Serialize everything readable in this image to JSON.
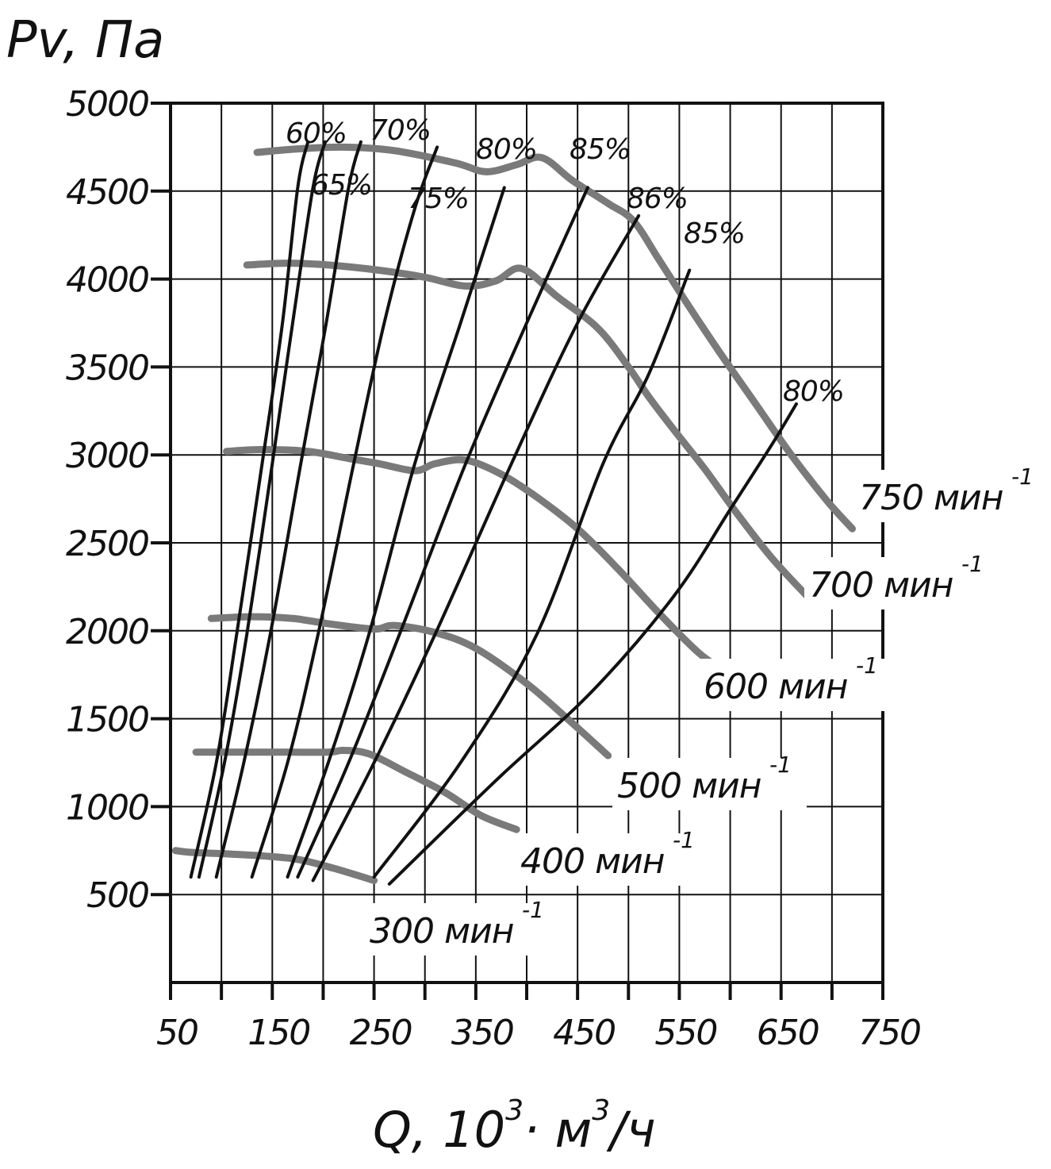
{
  "chart_data": {
    "type": "line",
    "title": "",
    "ylabel": "Pv, Па",
    "xlabel": {
      "prefix": "Q, 10",
      "sup1": "3",
      "dot": "·",
      "mid": " м",
      "sup2": "3",
      "suffix": "/ч"
    },
    "xlim": [
      50,
      750
    ],
    "ylim": [
      0,
      5000
    ],
    "x_ticks": [
      50,
      150,
      250,
      350,
      450,
      550,
      650,
      750
    ],
    "y_ticks": [
      500,
      1000,
      1500,
      2000,
      2500,
      3000,
      3500,
      4000,
      4500,
      5000
    ],
    "x_tick_labels": [
      "50",
      "150",
      "250",
      "350",
      "450",
      "550",
      "650",
      "750"
    ],
    "y_tick_labels": [
      "500",
      "1000",
      "1500",
      "2000",
      "2500",
      "3000",
      "3500",
      "4000",
      "4500",
      "5000"
    ],
    "grid": true,
    "speed_curves": [
      {
        "label": "300 мин",
        "exponent": "-1",
        "points": [
          [
            55,
            750
          ],
          [
            70,
            740
          ],
          [
            110,
            730
          ],
          [
            140,
            720
          ],
          [
            175,
            700
          ],
          [
            210,
            650
          ],
          [
            250,
            580
          ]
        ]
      },
      {
        "label": "400 мин",
        "exponent": "-1",
        "points": [
          [
            75,
            1310
          ],
          [
            110,
            1310
          ],
          [
            150,
            1310
          ],
          [
            205,
            1310
          ],
          [
            220,
            1320
          ],
          [
            245,
            1300
          ],
          [
            280,
            1200
          ],
          [
            320,
            1080
          ],
          [
            355,
            950
          ],
          [
            390,
            870
          ]
        ]
      },
      {
        "label": "500 мин",
        "exponent": "-1",
        "points": [
          [
            90,
            2070
          ],
          [
            130,
            2080
          ],
          [
            170,
            2070
          ],
          [
            205,
            2040
          ],
          [
            250,
            2010
          ],
          [
            270,
            2030
          ],
          [
            310,
            1990
          ],
          [
            350,
            1900
          ],
          [
            400,
            1700
          ],
          [
            440,
            1500
          ],
          [
            480,
            1290
          ]
        ]
      },
      {
        "label": "600 мин",
        "exponent": "-1",
        "points": [
          [
            105,
            3020
          ],
          [
            140,
            3030
          ],
          [
            185,
            3020
          ],
          [
            225,
            2980
          ],
          [
            255,
            2950
          ],
          [
            290,
            2910
          ],
          [
            310,
            2950
          ],
          [
            340,
            2970
          ],
          [
            375,
            2890
          ],
          [
            410,
            2760
          ],
          [
            450,
            2580
          ],
          [
            490,
            2350
          ],
          [
            530,
            2100
          ],
          [
            570,
            1870
          ],
          [
            600,
            1750
          ]
        ]
      },
      {
        "label": "700 мин",
        "exponent": "-1",
        "points": [
          [
            125,
            4080
          ],
          [
            165,
            4090
          ],
          [
            205,
            4080
          ],
          [
            255,
            4050
          ],
          [
            300,
            4010
          ],
          [
            340,
            3960
          ],
          [
            370,
            3990
          ],
          [
            395,
            4060
          ],
          [
            430,
            3900
          ],
          [
            470,
            3720
          ],
          [
            500,
            3500
          ],
          [
            520,
            3330
          ],
          [
            545,
            3140
          ],
          [
            575,
            2920
          ],
          [
            605,
            2680
          ],
          [
            640,
            2420
          ],
          [
            675,
            2200
          ]
        ]
      },
      {
        "label": "750 мин",
        "exponent": "-1",
        "points": [
          [
            135,
            4720
          ],
          [
            175,
            4740
          ],
          [
            220,
            4750
          ],
          [
            270,
            4730
          ],
          [
            330,
            4660
          ],
          [
            360,
            4610
          ],
          [
            390,
            4650
          ],
          [
            415,
            4690
          ],
          [
            445,
            4560
          ],
          [
            480,
            4430
          ],
          [
            505,
            4330
          ],
          [
            530,
            4110
          ],
          [
            560,
            3840
          ],
          [
            590,
            3580
          ],
          [
            625,
            3290
          ],
          [
            660,
            3000
          ],
          [
            695,
            2740
          ],
          [
            720,
            2580
          ]
        ]
      }
    ],
    "efficiency_curves": [
      {
        "label": "60%",
        "points": [
          [
            70,
            600
          ],
          [
            95,
            1250
          ],
          [
            115,
            1980
          ],
          [
            140,
            2950
          ],
          [
            160,
            3750
          ],
          [
            175,
            4520
          ],
          [
            185,
            4780
          ]
        ]
      },
      {
        "label": "65%",
        "points": [
          [
            78,
            600
          ],
          [
            103,
            1250
          ],
          [
            125,
            1980
          ],
          [
            150,
            2950
          ],
          [
            170,
            3750
          ],
          [
            190,
            4520
          ],
          [
            202,
            4780
          ]
        ]
      },
      {
        "label": "70%",
        "points": [
          [
            95,
            600
          ],
          [
            122,
            1250
          ],
          [
            148,
            1980
          ],
          [
            178,
            2950
          ],
          [
            203,
            3750
          ],
          [
            225,
            4520
          ],
          [
            237,
            4780
          ]
        ]
      },
      {
        "label": "75%",
        "points": [
          [
            130,
            600
          ],
          [
            165,
            1250
          ],
          [
            195,
            1980
          ],
          [
            230,
            2950
          ],
          [
            260,
            3750
          ],
          [
            290,
            4400
          ],
          [
            312,
            4750
          ]
        ]
      },
      {
        "label": "80%",
        "points": [
          [
            165,
            600
          ],
          [
            205,
            1250
          ],
          [
            245,
            1980
          ],
          [
            290,
            2950
          ],
          [
            335,
            3750
          ],
          [
            378,
            4520
          ]
        ]
      },
      {
        "label": "85%",
        "points": [
          [
            175,
            600
          ],
          [
            225,
            1250
          ],
          [
            275,
            1980
          ],
          [
            340,
            2950
          ],
          [
            400,
            3750
          ],
          [
            460,
            4520
          ]
        ]
      },
      {
        "label": "86%",
        "points": [
          [
            190,
            580
          ],
          [
            250,
            1250
          ],
          [
            310,
            1980
          ],
          [
            385,
            2950
          ],
          [
            450,
            3750
          ],
          [
            510,
            4360
          ]
        ]
      },
      {
        "label": "85%",
        "points": [
          [
            250,
            600
          ],
          [
            335,
            1250
          ],
          [
            410,
            1980
          ],
          [
            475,
            2950
          ],
          [
            520,
            3460
          ],
          [
            560,
            4050
          ]
        ]
      },
      {
        "label": "80%",
        "points": [
          [
            265,
            560
          ],
          [
            370,
            1150
          ],
          [
            465,
            1660
          ],
          [
            545,
            2200
          ],
          [
            600,
            2690
          ],
          [
            640,
            3050
          ],
          [
            665,
            3290
          ]
        ]
      }
    ]
  }
}
